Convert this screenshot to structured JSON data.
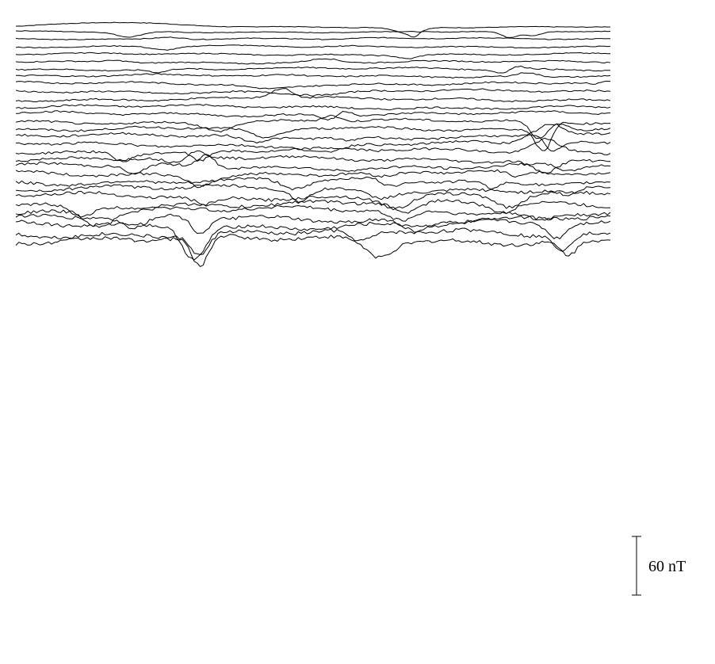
{
  "chart_data": {
    "type": "line",
    "title": "",
    "xlabel": "",
    "ylabel": "",
    "grid": false,
    "legend": "none",
    "stroke_color": "#000000",
    "scale_bar": {
      "value": 60,
      "unit": "nT",
      "label": "60 nT"
    },
    "series": [
      {
        "baseline": 0,
        "events": [
          [
            16,
            12,
            4
          ],
          [
            66,
            3,
            -6
          ],
          [
            67,
            1,
            -4
          ]
        ]
      },
      {
        "baseline": -5,
        "events": [
          [
            19,
            3,
            -5
          ],
          [
            83,
            2,
            -6
          ],
          [
            87,
            2,
            -4
          ]
        ]
      },
      {
        "baseline": -12,
        "events": [
          [
            26,
            3,
            2
          ],
          [
            54,
            4,
            -1
          ]
        ]
      },
      {
        "baseline": -20,
        "events": [
          [
            25,
            3,
            -3
          ],
          [
            50,
            4,
            -1
          ]
        ]
      },
      {
        "baseline": -28,
        "events": [
          [
            66,
            2,
            -3
          ]
        ]
      },
      {
        "baseline": -36,
        "events": [
          [
            17,
            3,
            2
          ],
          [
            52,
            3,
            3
          ]
        ]
      },
      {
        "baseline": -43,
        "events": [
          [
            24,
            2,
            -3
          ],
          [
            82,
            2,
            -4
          ],
          [
            84,
            2,
            3
          ]
        ]
      },
      {
        "baseline": -50,
        "events": [
          [
            40,
            4,
            -1
          ],
          [
            86,
            2,
            3
          ]
        ]
      },
      {
        "baseline": -58,
        "events": [
          [
            42,
            5,
            -4
          ],
          [
            97,
            1,
            -2
          ]
        ]
      },
      {
        "baseline": -66,
        "events": [
          [
            52,
            6,
            -3
          ]
        ]
      },
      {
        "baseline": -74,
        "events": [
          [
            44,
            3,
            4
          ],
          [
            45,
            2,
            5
          ]
        ]
      },
      {
        "baseline": -82,
        "events": []
      },
      {
        "baseline": -89,
        "events": [
          [
            53,
            2,
            -5
          ],
          [
            55,
            2,
            5
          ]
        ]
      },
      {
        "baseline": -97,
        "events": [
          [
            34,
            3,
            -6
          ],
          [
            53,
            2,
            5
          ],
          [
            88,
            2,
            -14
          ]
        ]
      },
      {
        "baseline": -104,
        "events": [
          [
            42,
            4,
            -9
          ],
          [
            89,
            2,
            -19
          ],
          [
            91,
            2,
            10
          ]
        ]
      },
      {
        "baseline": -112,
        "events": [
          [
            40,
            3,
            -5
          ],
          [
            56,
            2,
            -3
          ],
          [
            90,
            3,
            10
          ]
        ]
      },
      {
        "baseline": -120,
        "events": [
          [
            52,
            4,
            -6
          ],
          [
            88,
            3,
            9
          ],
          [
            90,
            2,
            -12
          ]
        ]
      },
      {
        "baseline": -127,
        "events": [
          [
            18,
            2,
            -6
          ],
          [
            31,
            2,
            -8
          ],
          [
            89,
            3,
            9
          ]
        ]
      },
      {
        "baseline": -135,
        "events": [
          [
            27,
            3,
            -5
          ],
          [
            30,
            2,
            5
          ],
          [
            89,
            3,
            -10
          ]
        ]
      },
      {
        "baseline": -143,
        "events": [
          [
            20,
            2,
            -7
          ],
          [
            32,
            2,
            9
          ],
          [
            93,
            2,
            -4
          ]
        ]
      },
      {
        "baseline": -150,
        "events": [
          [
            31,
            3,
            -6
          ],
          [
            62,
            3,
            -4
          ],
          [
            84,
            2,
            -4
          ]
        ]
      },
      {
        "baseline": -158,
        "events": [
          [
            47,
            3,
            -6
          ],
          [
            63,
            2,
            -5
          ],
          [
            80,
            2,
            -5
          ]
        ]
      },
      {
        "baseline": -166,
        "events": [
          [
            48,
            2,
            -8
          ],
          [
            61,
            3,
            -5
          ],
          [
            93,
            2,
            -5
          ]
        ]
      },
      {
        "baseline": -173,
        "events": [
          [
            32,
            3,
            -6
          ],
          [
            64,
            3,
            -7
          ],
          [
            83,
            3,
            -8
          ]
        ]
      },
      {
        "baseline": -181,
        "events": [
          [
            11,
            3,
            -8
          ],
          [
            66,
            3,
            -8
          ],
          [
            82,
            3,
            -6
          ]
        ]
      },
      {
        "baseline": -188,
        "events": [
          [
            14,
            3,
            -9
          ],
          [
            65,
            3,
            -8
          ],
          [
            88,
            3,
            -6
          ]
        ]
      },
      {
        "baseline": -196,
        "events": [
          [
            20,
            3,
            -9
          ],
          [
            31,
            2,
            -10
          ],
          [
            67,
            3,
            -7
          ]
        ]
      },
      {
        "baseline": -203,
        "events": [
          [
            29,
            2,
            -13
          ],
          [
            31,
            2,
            -13
          ],
          [
            91,
            2,
            -9
          ]
        ]
      },
      {
        "baseline": -211,
        "events": [
          [
            31,
            2,
            -14
          ],
          [
            58,
            3,
            -8
          ],
          [
            92,
            2,
            -10
          ]
        ]
      },
      {
        "baseline": -218,
        "events": [
          [
            31,
            2,
            -20
          ],
          [
            61,
            3,
            -10
          ],
          [
            93,
            2,
            -10
          ]
        ]
      }
    ]
  }
}
